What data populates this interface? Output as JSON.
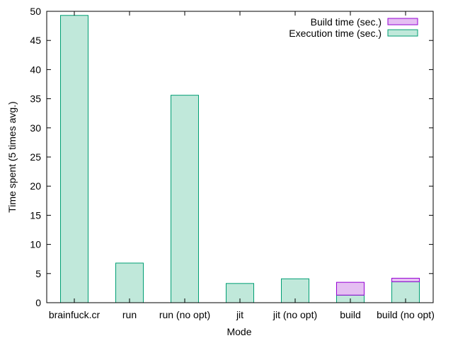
{
  "chart_data": {
    "type": "bar",
    "stacked": true,
    "title": "",
    "xlabel": "Mode",
    "ylabel": "Time spent (5 times avg.)",
    "ylim": [
      0,
      50
    ],
    "yticks": [
      0,
      5,
      10,
      15,
      20,
      25,
      30,
      35,
      40,
      45,
      50
    ],
    "grid": false,
    "legend_position": "top-right",
    "categories": [
      "brainfuck.cr",
      "run",
      "run (no opt)",
      "jit",
      "jit (no opt)",
      "build",
      "build (no opt)"
    ],
    "series": [
      {
        "name": "Build time (sec.)",
        "values": [
          0,
          0,
          0,
          0,
          0,
          2.2,
          0.6
        ],
        "fill": "#e5bff2",
        "stroke": "#9400d3"
      },
      {
        "name": "Execution time (sec.)",
        "values": [
          49.3,
          6.8,
          35.6,
          3.3,
          4.1,
          1.3,
          3.6
        ],
        "fill": "#c0e8da",
        "stroke": "#009e73"
      }
    ]
  }
}
